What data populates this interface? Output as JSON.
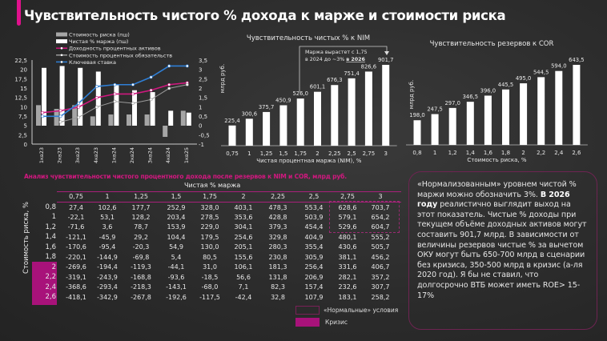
{
  "page": {
    "title": "Чувствительность чистого % дохода к марже и стоимости риска",
    "accent_color": "#e0118c"
  },
  "chart_data": [
    {
      "type": "bar+line",
      "categories": [
        "1кв23",
        "2кв23",
        "3кв23",
        "4кв23",
        "1кв24",
        "2кв24",
        "3кв24",
        "4кв24",
        "1кв25"
      ],
      "left_axis_ticks": [
        "0",
        "2,5",
        "5",
        "7,5",
        "10",
        "12,5",
        "15",
        "17,5",
        "20",
        "22,5"
      ],
      "right_axis_ticks": [
        "-1",
        "-0,5",
        "0",
        "0,5",
        "1",
        "1,5",
        "2",
        "2,5",
        "3",
        "3,5"
      ],
      "ylim_right": [
        -1,
        3.5
      ],
      "legend_placement": "top",
      "series": [
        {
          "name": "Стоимость риска (пш)",
          "kind": "bar",
          "color": "#a6a6a6",
          "values": [
            1.1,
            0.9,
            1.1,
            0.5,
            0.6,
            0.6,
            0.6,
            -0.6,
            0.8
          ]
        },
        {
          "name": "Чистая % маржа (пш)",
          "kind": "bar",
          "color": "#ffffff",
          "values": [
            3.1,
            3.2,
            3.1,
            2.9,
            2.2,
            1.9,
            1.8,
            0.8,
            0.7
          ]
        },
        {
          "name": "Доходность процентных активов",
          "kind": "line",
          "color": "#d0187f",
          "values": [
            0.7,
            0.8,
            1.0,
            1.5,
            1.7,
            1.7,
            1.9,
            2.2,
            2.3
          ]
        },
        {
          "name": "Стоимость процентных обязательств",
          "kind": "line",
          "color": "#9a9a9a",
          "values": [
            null,
            0.2,
            0.45,
            1.0,
            1.3,
            1.2,
            1.4,
            2.0,
            2.2
          ]
        },
        {
          "name": "Ключевая ставка",
          "kind": "line",
          "color": "#2f7fd6",
          "values": [
            0.5,
            0.5,
            1.2,
            2.1,
            2.2,
            2.2,
            2.6,
            3.2,
            3.2
          ]
        }
      ]
    },
    {
      "type": "bar",
      "title": "Чувствительность чистых % к NIM",
      "xlabel": "Чистая процентная маржа (NIM), %",
      "ylabel": "млрд руб.",
      "categories": [
        "0,75",
        "1",
        "1,25",
        "1,5",
        "1,75",
        "2",
        "2,25",
        "2,5",
        "2,75",
        "3"
      ],
      "values": [
        225.4,
        300.6,
        375.7,
        450.9,
        526.0,
        601.1,
        676.3,
        751.4,
        826.6,
        901.7
      ],
      "labels": [
        "225,4",
        "300,6",
        "375,7",
        "450,9",
        "526,0",
        "601,1",
        "676,3",
        "751,4",
        "826,6",
        "901,7"
      ],
      "annotation": {
        "line1": "Маржа вырастет с 1,75",
        "line2": "в 2024 до ~3% ",
        "line2_bold": "в 2026"
      }
    },
    {
      "type": "bar",
      "title": "Чувствительность резервов к COR",
      "xlabel": "Стоимость риска, %",
      "ylabel": "млрд руб.",
      "categories": [
        "0,8",
        "1",
        "1,2",
        "1,4",
        "1,6",
        "1,8",
        "2",
        "2,2",
        "2,4",
        "2,6"
      ],
      "values": [
        198.0,
        247.5,
        297.0,
        346.5,
        396.0,
        445.5,
        495.0,
        544.5,
        594.0,
        643.5
      ],
      "labels": [
        "198,0",
        "247,5",
        "297,0",
        "346,5",
        "396,0",
        "445,5",
        "495,0",
        "544,5",
        "594,0",
        "643,5"
      ]
    },
    {
      "type": "table",
      "title": "Анализ чувствительности чистого процентного дохода после резервов к NIM и COR, млрд руб.",
      "column_title": "Чистая % маржа",
      "row_title": "Стоимость риска, %",
      "columns": [
        "0,75",
        "1",
        "1,25",
        "1,5",
        "1,75",
        "2",
        "2,25",
        "2,5",
        "2,75",
        "3"
      ],
      "rows": [
        {
          "label": "0,8",
          "cells": [
            "27,4",
            "102,6",
            "177,7",
            "252,9",
            "328,0",
            "403,1",
            "478,3",
            "553,4",
            "628,6",
            "703,7"
          ]
        },
        {
          "label": "1",
          "cells": [
            "-22,1",
            "53,1",
            "128,2",
            "203,4",
            "278,5",
            "353,6",
            "428,8",
            "503,9",
            "579,1",
            "654,2"
          ]
        },
        {
          "label": "1,2",
          "cells": [
            "-71,6",
            "3,6",
            "78,7",
            "153,9",
            "229,0",
            "304,1",
            "379,3",
            "454,4",
            "529,6",
            "604,7"
          ]
        },
        {
          "label": "1,4",
          "cells": [
            "-121,1",
            "-45,9",
            "29,2",
            "104,4",
            "179,5",
            "254,6",
            "329,8",
            "404,9",
            "480,1",
            "555,2"
          ]
        },
        {
          "label": "1,6",
          "cells": [
            "-170,6",
            "-95,4",
            "-20,3",
            "54,9",
            "130,0",
            "205,1",
            "280,3",
            "355,4",
            "430,6",
            "505,7"
          ]
        },
        {
          "label": "1,8",
          "cells": [
            "-220,1",
            "-144,9",
            "-69,8",
            "5,4",
            "80,5",
            "155,6",
            "230,8",
            "305,9",
            "381,1",
            "456,2"
          ]
        },
        {
          "label": "2",
          "cells": [
            "-269,6",
            "-194,4",
            "-119,3",
            "-44,1",
            "31,0",
            "106,1",
            "181,3",
            "256,4",
            "331,6",
            "406,7"
          ]
        },
        {
          "label": "2,2",
          "cells": [
            "-319,1",
            "-243,9",
            "-168,8",
            "-93,6",
            "-18,5",
            "56,6",
            "131,8",
            "206,9",
            "282,1",
            "357,2"
          ]
        },
        {
          "label": "2,4",
          "cells": [
            "-368,6",
            "-293,4",
            "-218,3",
            "-143,1",
            "-68,0",
            "7,1",
            "82,3",
            "157,4",
            "232,6",
            "307,7"
          ]
        },
        {
          "label": "2,6",
          "cells": [
            "-418,1",
            "-342,9",
            "-267,8",
            "-192,6",
            "-117,5",
            "-42,4",
            "32,8",
            "107,9",
            "183,1",
            "258,2"
          ]
        }
      ],
      "legend": {
        "normal": "«Нормальные» условия",
        "crisis": "Кризис"
      },
      "crisis_color": "#a8127a"
    }
  ],
  "note": {
    "p1": "«Нормализованным» уровнем чистой % маржи можно обозначить 3%. ",
    "bold": "В 2026 году",
    "p2": " реалистично выглядит выход на этот показатель. Чистые % доходы при текущем объёме доходных активов могут составить 901,7 млрд. В зависимости от величины резервов чистые % за вычетом ОКУ могут быть 650-700 млрд в сценарии без кризиса, 350-500 млрд в кризис (а-ля 2020 год). Я бы не ставил, что долгосрочно ВТБ может иметь ROE> 15-17%"
  }
}
